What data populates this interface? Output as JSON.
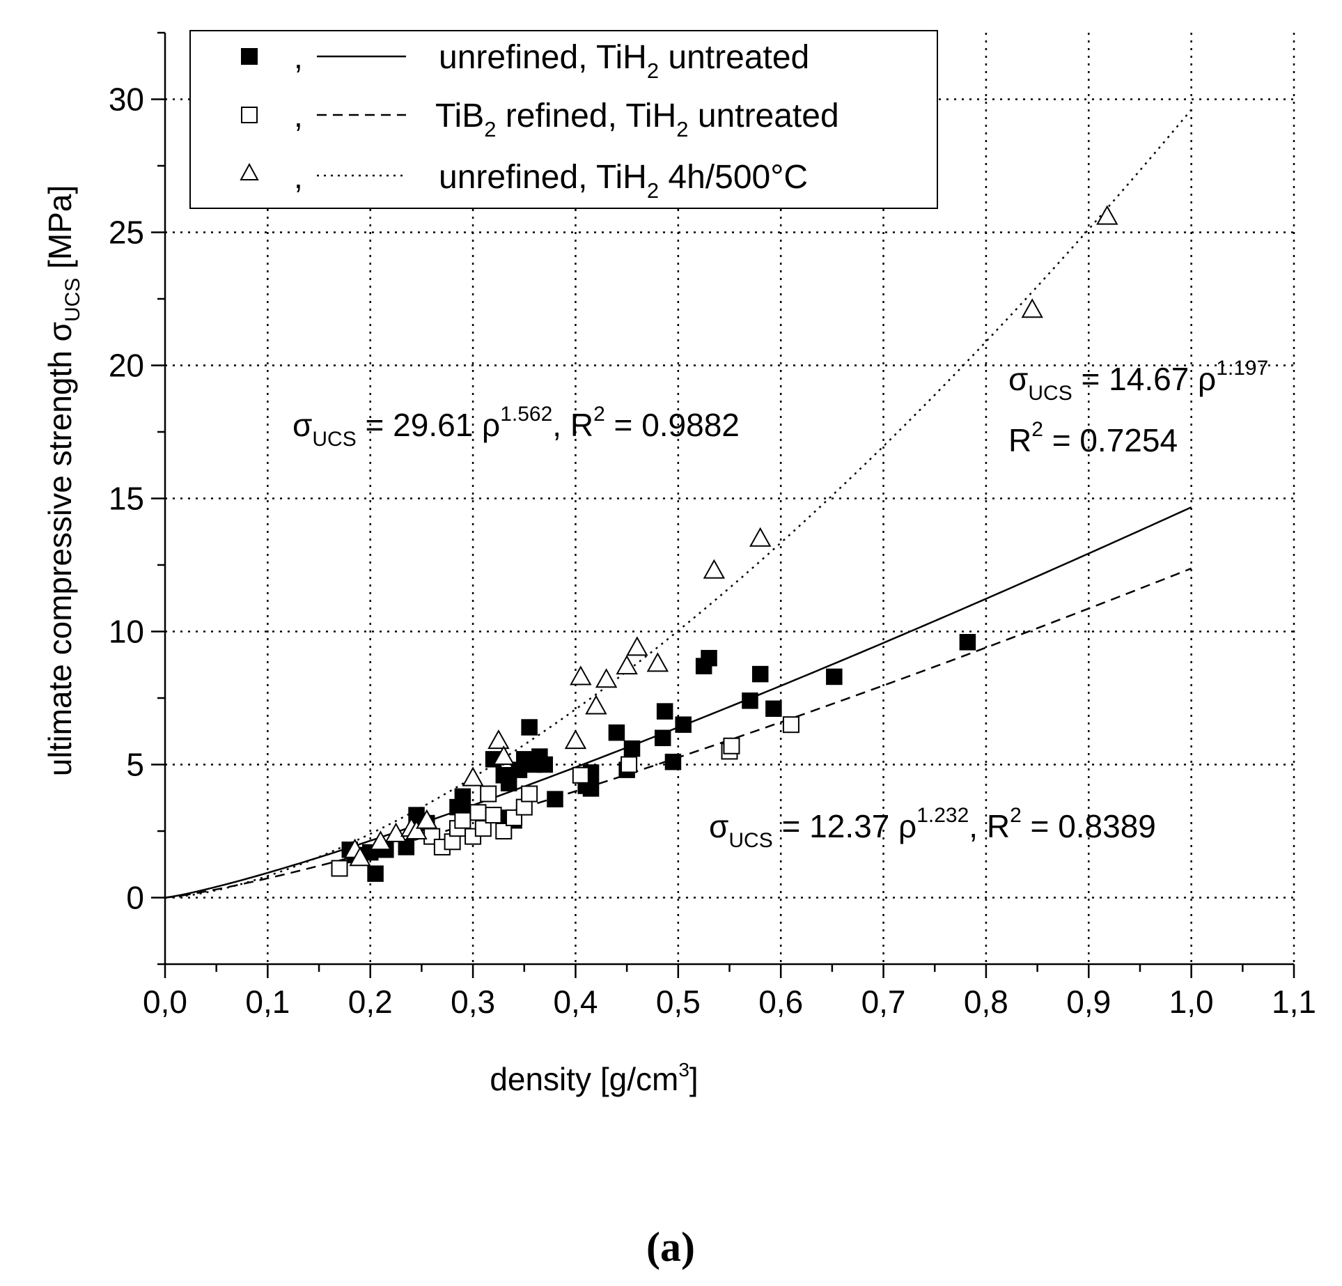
{
  "chart_data": {
    "type": "scatter",
    "panel_label": "(a)",
    "xlabel": "density [g/cm",
    "xlabel_sup": "3",
    "xlabel_end": "]",
    "ylabel": "ultimate compressive strength σ",
    "ylabel_sub": "UCS",
    "ylabel_end": " [MPa]",
    "xlim": [
      0.0,
      1.1
    ],
    "ylim": [
      -2.5,
      32.5
    ],
    "x_ticks": [
      "0,0",
      "0,1",
      "0,2",
      "0,3",
      "0,4",
      "0,5",
      "0,6",
      "0,7",
      "0,8",
      "0,9",
      "1,0",
      "1,1"
    ],
    "y_ticks": [
      "0",
      "5",
      "10",
      "15",
      "20",
      "25",
      "30"
    ],
    "grid": "dotted",
    "legend_position": "top-left",
    "series": [
      {
        "name_pre": "unrefined, TiH",
        "name_sub": "2",
        "name_post": " untreated",
        "marker": "filled-square",
        "fit_style": "solid",
        "fit": {
          "a": 14.67,
          "b": 1.197
        },
        "points": [
          [
            0.18,
            1.8
          ],
          [
            0.185,
            1.6
          ],
          [
            0.2,
            1.7
          ],
          [
            0.205,
            0.9
          ],
          [
            0.215,
            1.8
          ],
          [
            0.235,
            1.9
          ],
          [
            0.245,
            3.1
          ],
          [
            0.255,
            2.8
          ],
          [
            0.285,
            3.4
          ],
          [
            0.29,
            3.8
          ],
          [
            0.3,
            3.2
          ],
          [
            0.32,
            5.2
          ],
          [
            0.33,
            4.6
          ],
          [
            0.335,
            4.3
          ],
          [
            0.335,
            3.0
          ],
          [
            0.34,
            2.9
          ],
          [
            0.345,
            4.8
          ],
          [
            0.35,
            5.2
          ],
          [
            0.355,
            6.4
          ],
          [
            0.36,
            5.0
          ],
          [
            0.365,
            5.3
          ],
          [
            0.37,
            5.0
          ],
          [
            0.38,
            3.7
          ],
          [
            0.41,
            4.2
          ],
          [
            0.415,
            4.1
          ],
          [
            0.415,
            4.7
          ],
          [
            0.44,
            6.2
          ],
          [
            0.45,
            4.8
          ],
          [
            0.455,
            5.6
          ],
          [
            0.485,
            6.0
          ],
          [
            0.487,
            7.0
          ],
          [
            0.495,
            5.1
          ],
          [
            0.505,
            6.5
          ],
          [
            0.525,
            8.7
          ],
          [
            0.53,
            9.0
          ],
          [
            0.57,
            7.4
          ],
          [
            0.58,
            8.4
          ],
          [
            0.593,
            7.1
          ],
          [
            0.652,
            8.3
          ],
          [
            0.782,
            9.6
          ]
        ]
      },
      {
        "name_pre": "TiB",
        "name_sub": "2",
        "name_post": " refined, TiH",
        "name_sub2": "2",
        "name_post2": " untreated",
        "marker": "open-square",
        "fit_style": "dashed",
        "fit": {
          "a": 12.37,
          "b": 1.232
        },
        "points": [
          [
            0.17,
            1.1
          ],
          [
            0.26,
            2.3
          ],
          [
            0.27,
            1.9
          ],
          [
            0.28,
            2.1
          ],
          [
            0.285,
            2.6
          ],
          [
            0.29,
            2.9
          ],
          [
            0.3,
            2.3
          ],
          [
            0.305,
            3.2
          ],
          [
            0.31,
            2.6
          ],
          [
            0.315,
            3.9
          ],
          [
            0.32,
            3.1
          ],
          [
            0.33,
            2.5
          ],
          [
            0.34,
            3.0
          ],
          [
            0.35,
            3.4
          ],
          [
            0.355,
            3.9
          ],
          [
            0.405,
            4.6
          ],
          [
            0.452,
            5.0
          ],
          [
            0.55,
            5.5
          ],
          [
            0.552,
            5.7
          ],
          [
            0.61,
            6.5
          ]
        ]
      },
      {
        "name_pre": "unrefined, TiH",
        "name_sub": "2",
        "name_post": " 4h/500°C",
        "marker": "open-triangle",
        "fit_style": "dotted",
        "fit": {
          "a": 29.61,
          "b": 1.562
        },
        "points": [
          [
            0.185,
            1.8
          ],
          [
            0.19,
            1.5
          ],
          [
            0.21,
            2.1
          ],
          [
            0.225,
            2.4
          ],
          [
            0.24,
            2.6
          ],
          [
            0.245,
            2.5
          ],
          [
            0.255,
            2.9
          ],
          [
            0.3,
            4.5
          ],
          [
            0.325,
            5.9
          ],
          [
            0.33,
            5.3
          ],
          [
            0.4,
            5.9
          ],
          [
            0.405,
            8.3
          ],
          [
            0.42,
            7.2
          ],
          [
            0.43,
            8.2
          ],
          [
            0.45,
            8.7
          ],
          [
            0.46,
            9.4
          ],
          [
            0.48,
            8.8
          ],
          [
            0.535,
            12.3
          ],
          [
            0.58,
            13.5
          ],
          [
            0.845,
            22.1
          ],
          [
            0.918,
            25.6
          ]
        ]
      }
    ],
    "annotations": [
      {
        "id": "eq-triangle",
        "sym": "σ",
        "sub": "UCS",
        "mid": " = 29.61 ρ",
        "sup": "1.562",
        "tail_pre": ", R",
        "tail_sup": "2",
        "tail": " = 0.9882"
      },
      {
        "id": "eq-solid",
        "sym": "σ",
        "sub": "UCS",
        "mid": " = 14.67 ρ",
        "sup": "1.197",
        "line2_pre": "R",
        "line2_sup": "2",
        "line2": " = 0.7254"
      },
      {
        "id": "eq-dashed",
        "sym": "σ",
        "sub": "UCS",
        "mid": " = 12.37 ρ",
        "sup": "1.232",
        "tail_pre": ", R",
        "tail_sup": "2",
        "tail": " = 0.8389"
      }
    ]
  }
}
